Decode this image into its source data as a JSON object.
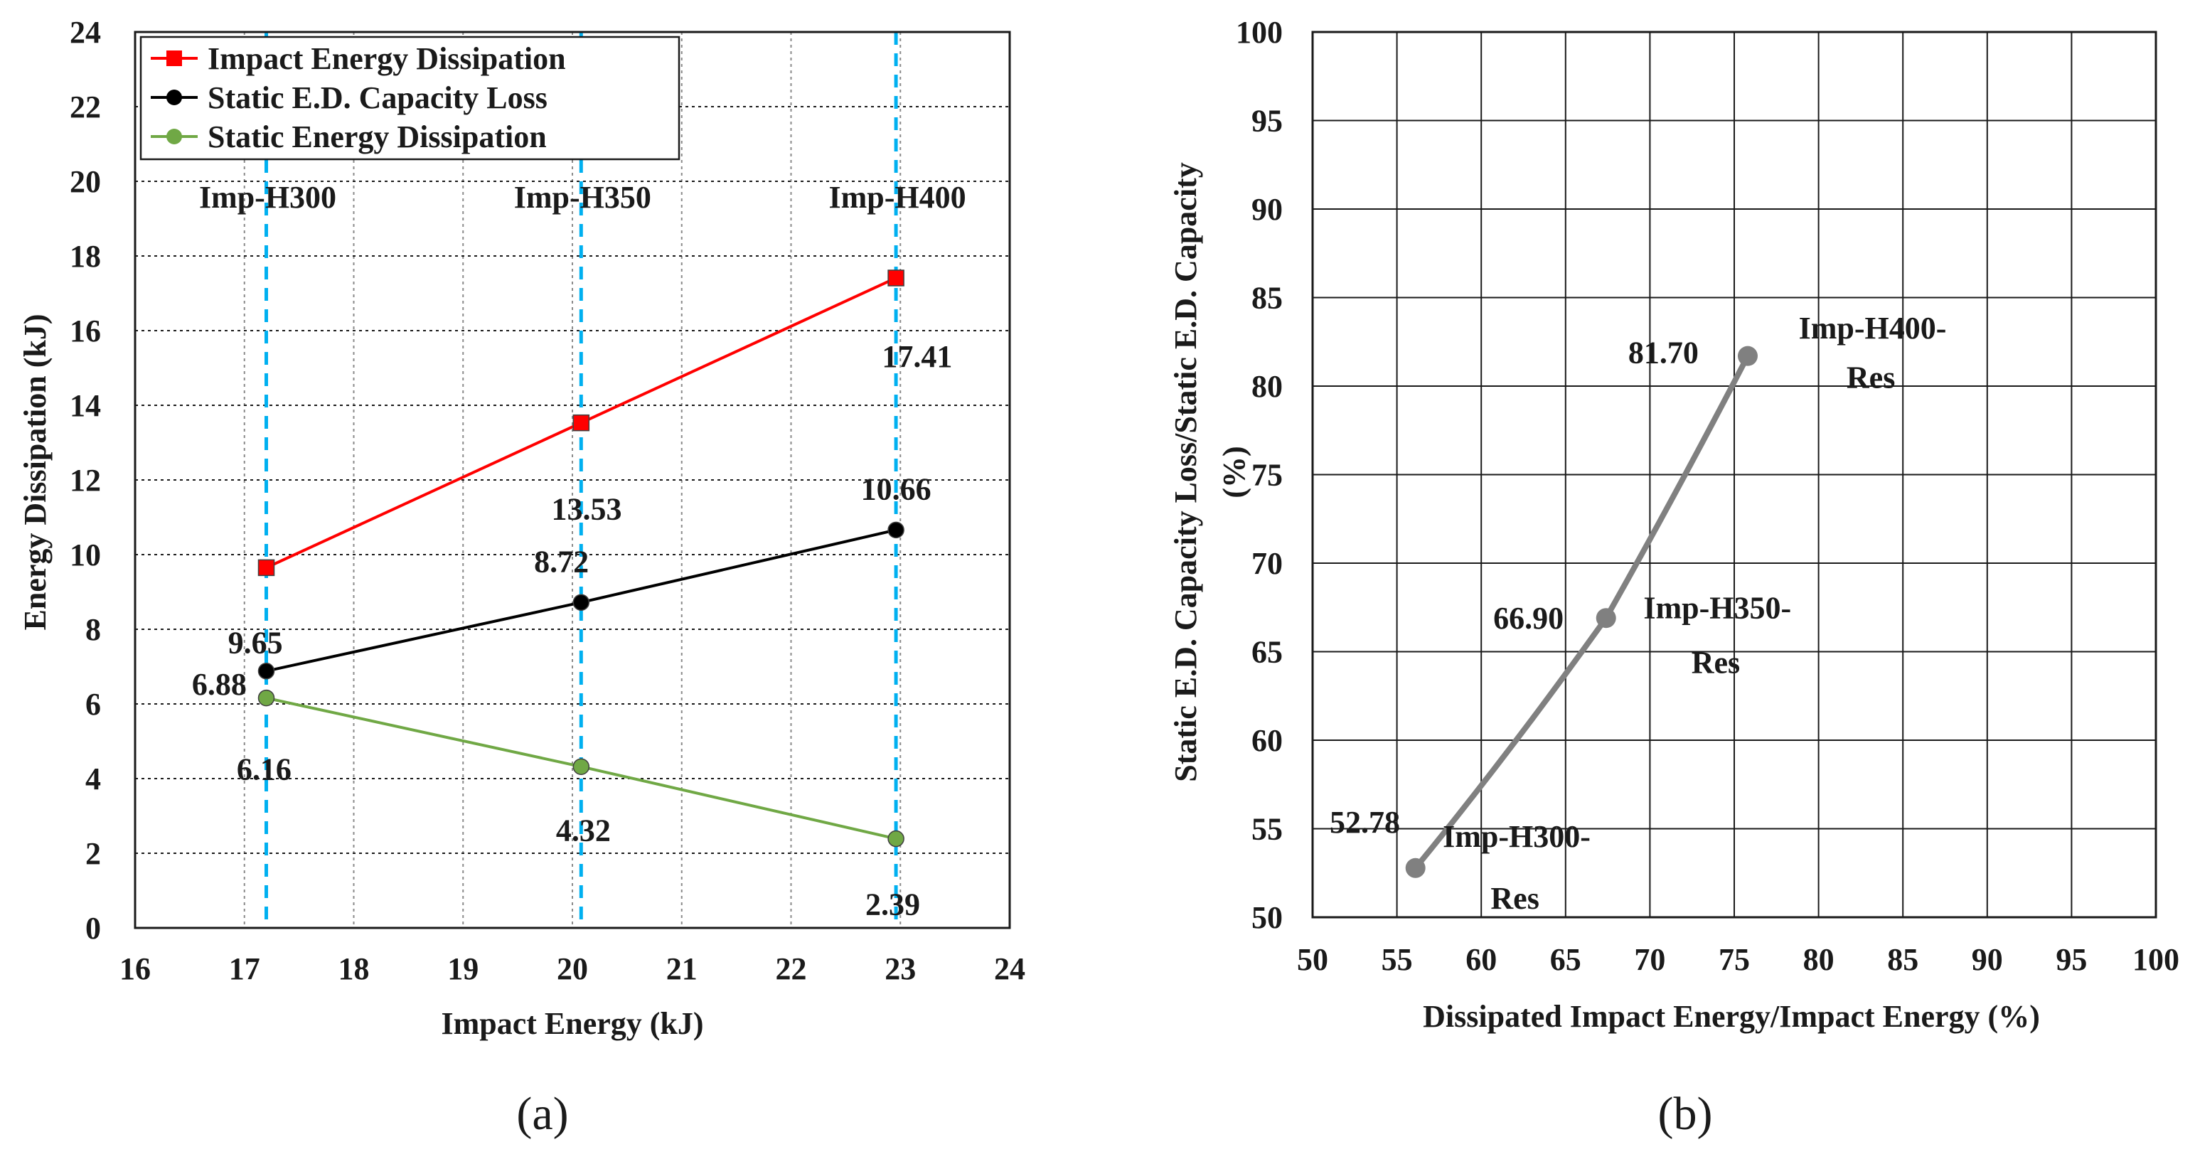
{
  "chart_data": [
    {
      "type": "line",
      "panel_label": "(a)",
      "xlabel": "Impact Energy (kJ)",
      "ylabel": "Energy Dissipation (kJ)",
      "xlim": [
        16,
        24
      ],
      "ylim": [
        0,
        24
      ],
      "x_ticks": [
        "16",
        "17",
        "18",
        "19",
        "20",
        "21",
        "22",
        "23",
        "24"
      ],
      "y_ticks": [
        "0",
        "2",
        "4",
        "6",
        "8",
        "10",
        "12",
        "14",
        "16",
        "18",
        "20",
        "22",
        "24"
      ],
      "grid": true,
      "legend_position": "top-left",
      "x": [
        17.2,
        20.08,
        22.96
      ],
      "series": [
        {
          "name": "Impact Energy Dissipation",
          "color": "#ff0000",
          "marker": "square",
          "values": [
            9.65,
            13.53,
            17.41
          ],
          "labels": [
            "9.65",
            "13.53",
            "17.41"
          ]
        },
        {
          "name": "Static E.D. Capacity Loss",
          "color": "#000000",
          "marker": "circle",
          "values": [
            6.88,
            8.72,
            10.66
          ],
          "labels": [
            "6.88",
            "8.72",
            "10.66"
          ]
        },
        {
          "name": "Static Energy Dissipation",
          "color": "#70a845",
          "marker": "circle",
          "values": [
            6.16,
            4.32,
            2.39
          ],
          "labels": [
            "6.16",
            "4.32",
            "2.39"
          ]
        }
      ],
      "reference_lines": [
        {
          "x": 17.2,
          "label": "Imp-H300"
        },
        {
          "x": 20.08,
          "label": "Imp-H350"
        },
        {
          "x": 22.96,
          "label": "Imp-H400"
        }
      ],
      "reference_color": "#00b0f0"
    },
    {
      "type": "line",
      "panel_label": "(b)",
      "xlabel": "Dissipated Impact Energy/Impact Energy (%)",
      "ylabel_lines": [
        "Static E.D. Capacity Loss/Static E.D. Capacity",
        "(%)"
      ],
      "xlim": [
        50,
        100
      ],
      "ylim": [
        50,
        100
      ],
      "x_ticks": [
        "50",
        "55",
        "60",
        "65",
        "70",
        "75",
        "80",
        "85",
        "90",
        "95",
        "100"
      ],
      "y_ticks": [
        "50",
        "55",
        "60",
        "65",
        "70",
        "75",
        "80",
        "85",
        "90",
        "95",
        "100"
      ],
      "grid": true,
      "series": [
        {
          "color": "#808080",
          "marker": "circle",
          "x": [
            56.1,
            67.4,
            75.8
          ],
          "values": [
            52.78,
            66.9,
            81.7
          ],
          "labels": [
            "52.78",
            "66.90",
            "81.70"
          ]
        }
      ],
      "point_names": [
        [
          "Imp-H300-",
          "Res"
        ],
        [
          "Imp-H350-",
          "Res"
        ],
        [
          "Imp-H400-",
          "Res"
        ]
      ]
    }
  ]
}
